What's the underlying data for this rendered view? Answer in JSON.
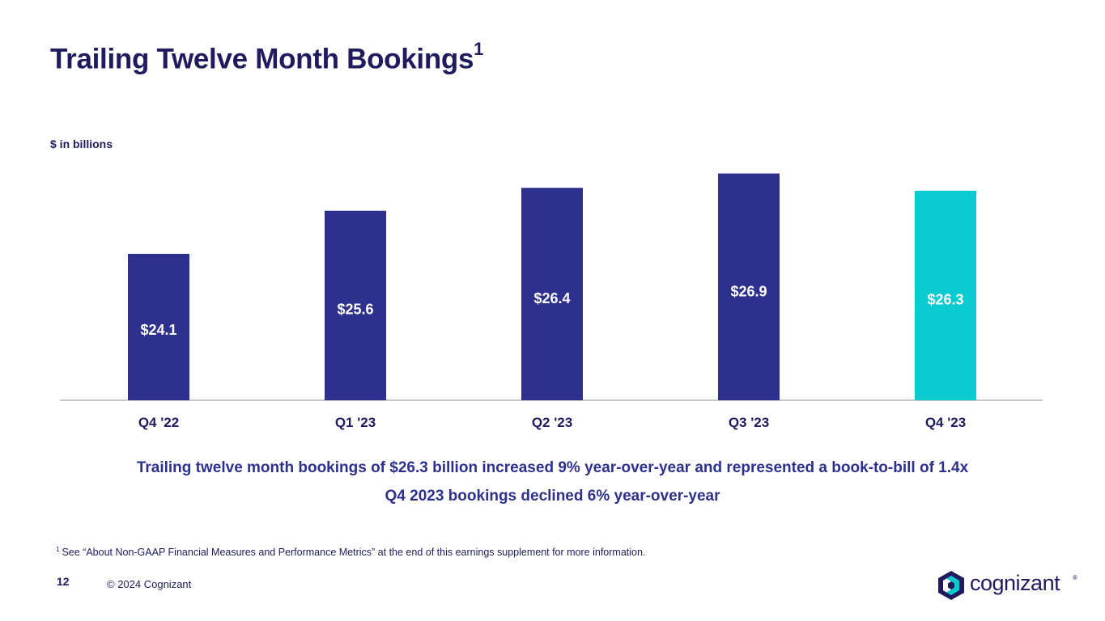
{
  "slide": {
    "title": "Trailing Twelve Month Bookings",
    "title_sup": "1",
    "unit_label": "$ in billions",
    "summary_line1": "Trailing twelve month bookings of $26.3 billion increased 9% year-over-year and represented a book-to-bill of 1.4x",
    "summary_line2": "Q4 2023 bookings declined 6% year-over-year",
    "footnote_marker": "1",
    "footnote_text": "See “About Non-GAAP Financial Measures and Performance Metrics” at the end of this earnings supplement for more information.",
    "page_number": "12",
    "copyright": "© 2024 Cognizant",
    "logo_text": "cognizant",
    "logo_reg": "®"
  },
  "colors": {
    "bar_default": "#2e308e",
    "bar_highlight": "#0acbd0",
    "label_on_default": "#ffffff",
    "label_on_highlight": "#ffffff",
    "axis": "#b5b5b5",
    "text_dark": "#1f1b5e"
  },
  "chart_data": {
    "type": "bar",
    "categories": [
      "Q4 '22",
      "Q1 '23",
      "Q2 '23",
      "Q3 '23",
      "Q4 '23"
    ],
    "values": [
      24.1,
      25.6,
      26.4,
      26.9,
      26.3
    ],
    "value_labels": [
      "$24.1",
      "$25.6",
      "$26.4",
      "$26.9",
      "$26.3"
    ],
    "highlight_index": 4,
    "ylabel": "$ in billions",
    "grid": false,
    "legend": "none"
  }
}
